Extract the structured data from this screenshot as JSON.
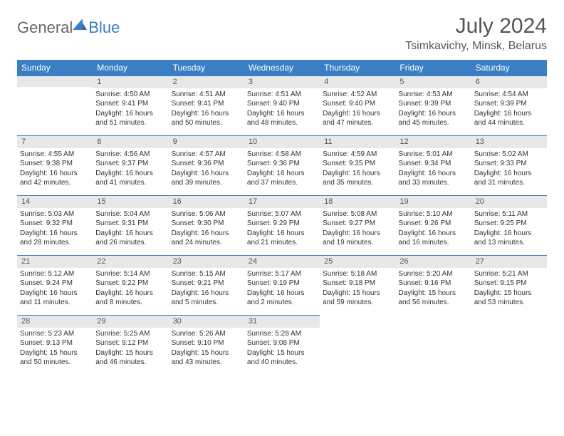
{
  "logo": {
    "text_gray": "General",
    "text_blue": "Blue"
  },
  "title": "July 2024",
  "location": "Tsimkavichy, Minsk, Belarus",
  "weekdays": [
    "Sunday",
    "Monday",
    "Tuesday",
    "Wednesday",
    "Thursday",
    "Friday",
    "Saturday"
  ],
  "colors": {
    "header_bg": "#3a7fc4",
    "header_text": "#ffffff",
    "daynum_bg": "#e8e8e8",
    "daynum_border": "#3a7fc4",
    "body_text": "#333333",
    "title_text": "#555555"
  },
  "weeks": [
    [
      null,
      {
        "n": "1",
        "sunrise": "4:50 AM",
        "sunset": "9:41 PM",
        "daylight": "16 hours and 51 minutes."
      },
      {
        "n": "2",
        "sunrise": "4:51 AM",
        "sunset": "9:41 PM",
        "daylight": "16 hours and 50 minutes."
      },
      {
        "n": "3",
        "sunrise": "4:51 AM",
        "sunset": "9:40 PM",
        "daylight": "16 hours and 48 minutes."
      },
      {
        "n": "4",
        "sunrise": "4:52 AM",
        "sunset": "9:40 PM",
        "daylight": "16 hours and 47 minutes."
      },
      {
        "n": "5",
        "sunrise": "4:53 AM",
        "sunset": "9:39 PM",
        "daylight": "16 hours and 45 minutes."
      },
      {
        "n": "6",
        "sunrise": "4:54 AM",
        "sunset": "9:39 PM",
        "daylight": "16 hours and 44 minutes."
      }
    ],
    [
      {
        "n": "7",
        "sunrise": "4:55 AM",
        "sunset": "9:38 PM",
        "daylight": "16 hours and 42 minutes."
      },
      {
        "n": "8",
        "sunrise": "4:56 AM",
        "sunset": "9:37 PM",
        "daylight": "16 hours and 41 minutes."
      },
      {
        "n": "9",
        "sunrise": "4:57 AM",
        "sunset": "9:36 PM",
        "daylight": "16 hours and 39 minutes."
      },
      {
        "n": "10",
        "sunrise": "4:58 AM",
        "sunset": "9:36 PM",
        "daylight": "16 hours and 37 minutes."
      },
      {
        "n": "11",
        "sunrise": "4:59 AM",
        "sunset": "9:35 PM",
        "daylight": "16 hours and 35 minutes."
      },
      {
        "n": "12",
        "sunrise": "5:01 AM",
        "sunset": "9:34 PM",
        "daylight": "16 hours and 33 minutes."
      },
      {
        "n": "13",
        "sunrise": "5:02 AM",
        "sunset": "9:33 PM",
        "daylight": "16 hours and 31 minutes."
      }
    ],
    [
      {
        "n": "14",
        "sunrise": "5:03 AM",
        "sunset": "9:32 PM",
        "daylight": "16 hours and 28 minutes."
      },
      {
        "n": "15",
        "sunrise": "5:04 AM",
        "sunset": "9:31 PM",
        "daylight": "16 hours and 26 minutes."
      },
      {
        "n": "16",
        "sunrise": "5:06 AM",
        "sunset": "9:30 PM",
        "daylight": "16 hours and 24 minutes."
      },
      {
        "n": "17",
        "sunrise": "5:07 AM",
        "sunset": "9:29 PM",
        "daylight": "16 hours and 21 minutes."
      },
      {
        "n": "18",
        "sunrise": "5:08 AM",
        "sunset": "9:27 PM",
        "daylight": "16 hours and 19 minutes."
      },
      {
        "n": "19",
        "sunrise": "5:10 AM",
        "sunset": "9:26 PM",
        "daylight": "16 hours and 16 minutes."
      },
      {
        "n": "20",
        "sunrise": "5:11 AM",
        "sunset": "9:25 PM",
        "daylight": "16 hours and 13 minutes."
      }
    ],
    [
      {
        "n": "21",
        "sunrise": "5:12 AM",
        "sunset": "9:24 PM",
        "daylight": "16 hours and 11 minutes."
      },
      {
        "n": "22",
        "sunrise": "5:14 AM",
        "sunset": "9:22 PM",
        "daylight": "16 hours and 8 minutes."
      },
      {
        "n": "23",
        "sunrise": "5:15 AM",
        "sunset": "9:21 PM",
        "daylight": "16 hours and 5 minutes."
      },
      {
        "n": "24",
        "sunrise": "5:17 AM",
        "sunset": "9:19 PM",
        "daylight": "16 hours and 2 minutes."
      },
      {
        "n": "25",
        "sunrise": "5:18 AM",
        "sunset": "9:18 PM",
        "daylight": "15 hours and 59 minutes."
      },
      {
        "n": "26",
        "sunrise": "5:20 AM",
        "sunset": "9:16 PM",
        "daylight": "15 hours and 56 minutes."
      },
      {
        "n": "27",
        "sunrise": "5:21 AM",
        "sunset": "9:15 PM",
        "daylight": "15 hours and 53 minutes."
      }
    ],
    [
      {
        "n": "28",
        "sunrise": "5:23 AM",
        "sunset": "9:13 PM",
        "daylight": "15 hours and 50 minutes."
      },
      {
        "n": "29",
        "sunrise": "5:25 AM",
        "sunset": "9:12 PM",
        "daylight": "15 hours and 46 minutes."
      },
      {
        "n": "30",
        "sunrise": "5:26 AM",
        "sunset": "9:10 PM",
        "daylight": "15 hours and 43 minutes."
      },
      {
        "n": "31",
        "sunrise": "5:28 AM",
        "sunset": "9:08 PM",
        "daylight": "15 hours and 40 minutes."
      },
      null,
      null,
      null
    ]
  ],
  "labels": {
    "sunrise": "Sunrise:",
    "sunset": "Sunset:",
    "daylight": "Daylight:"
  }
}
